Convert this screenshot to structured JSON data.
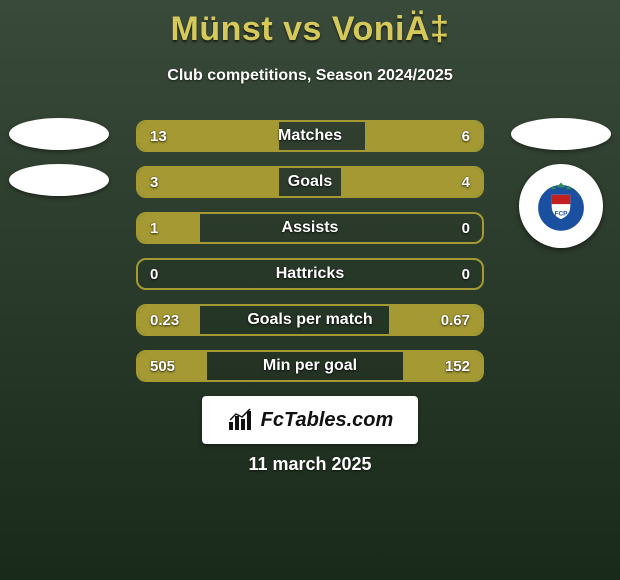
{
  "title": "Münst vs VoniÄ‡",
  "subtitle": "Club competitions, Season 2024/2025",
  "date": "11 march 2025",
  "logo_text": "FcTables.com",
  "colors": {
    "accent": "#a49933",
    "title_color": "#d4c95a",
    "text_color": "#ffffff"
  },
  "bars": [
    {
      "label": "Matches",
      "left_val": "13",
      "right_val": "6",
      "left_pct": 41,
      "right_pct": 34
    },
    {
      "label": "Goals",
      "left_val": "3",
      "right_val": "4",
      "left_pct": 41,
      "right_pct": 41
    },
    {
      "label": "Assists",
      "left_val": "1",
      "right_val": "0",
      "left_pct": 18,
      "right_pct": 0
    },
    {
      "label": "Hattricks",
      "left_val": "0",
      "right_val": "0",
      "left_pct": 0,
      "right_pct": 0
    },
    {
      "label": "Goals per match",
      "left_val": "0.23",
      "right_val": "0.67",
      "left_pct": 18,
      "right_pct": 27
    },
    {
      "label": "Min per goal",
      "left_val": "505",
      "right_val": "152",
      "left_pct": 20,
      "right_pct": 23
    }
  ],
  "crest": {
    "bg": "#1b4fa0",
    "ring": "#ffffff",
    "shield_top": "#c22020",
    "shield_bottom": "#ffffff",
    "crown": "#2e8b57"
  }
}
